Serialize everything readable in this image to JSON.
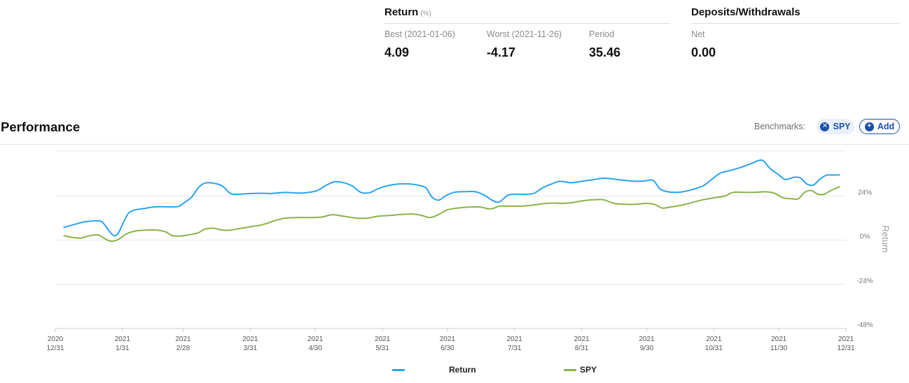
{
  "return_section": {
    "title": "Return",
    "unit": "(%)",
    "stats": [
      {
        "label": "Best (2021-01-06)",
        "value": "4.09"
      },
      {
        "label": "Worst (2021-11-26)",
        "value": "-4.17"
      },
      {
        "label": "Period",
        "value": "35.46"
      }
    ]
  },
  "deposits_section": {
    "title": "Deposits/Withdrawals",
    "stats": [
      {
        "label": "Net",
        "value": "0.00"
      }
    ]
  },
  "performance": {
    "title": "Performance",
    "benchmarks_label": "Benchmarks:",
    "benchmark_chip": "SPY",
    "add_label": "Add"
  },
  "colors": {
    "return_series": "#2aa3ef",
    "spy_series": "#8ab34a",
    "accent": "#1b4fa8"
  },
  "icons": {
    "remove_benchmark": "close-circle-icon",
    "add_benchmark": "plus-circle-icon"
  },
  "chart_data": {
    "type": "line",
    "x_ticks": [
      [
        "2020",
        "12/31"
      ],
      [
        "2021",
        "1/31"
      ],
      [
        "2021",
        "2/28"
      ],
      [
        "2021",
        "3/31"
      ],
      [
        "2021",
        "4/30"
      ],
      [
        "2021",
        "5/31"
      ],
      [
        "2021",
        "6/30"
      ],
      [
        "2021",
        "7/31"
      ],
      [
        "2021",
        "8/31"
      ],
      [
        "2021",
        "9/30"
      ],
      [
        "2021",
        "10/31"
      ],
      [
        "2021",
        "11/30"
      ],
      [
        "2021",
        "12/31"
      ]
    ],
    "x_range": [
      "2020-12-31",
      "2021-12-31"
    ],
    "ylabel": "Return",
    "y_ticks": [
      24,
      0,
      -24,
      -48
    ],
    "y_tick_labels": [
      "24%",
      "0%",
      "-24%",
      "-48%"
    ],
    "ylim": [
      -48,
      48.5
    ],
    "grid": true,
    "legend_position": "bottom",
    "series": [
      {
        "name": "Return",
        "points": [
          [
            "2021-01-04",
            7.0
          ],
          [
            "2021-01-08",
            8.3
          ],
          [
            "2021-01-12",
            9.6
          ],
          [
            "2021-01-16",
            10.3
          ],
          [
            "2021-01-20",
            10.5
          ],
          [
            "2021-01-22",
            9.5
          ],
          [
            "2021-01-25",
            4.8
          ],
          [
            "2021-01-27",
            2.5
          ],
          [
            "2021-01-29",
            3.8
          ],
          [
            "2021-02-01",
            11.0
          ],
          [
            "2021-02-03",
            15.0
          ],
          [
            "2021-02-06",
            16.5
          ],
          [
            "2021-02-10",
            17.2
          ],
          [
            "2021-02-14",
            18.0
          ],
          [
            "2021-02-18",
            18.2
          ],
          [
            "2021-02-22",
            18.1
          ],
          [
            "2021-02-26",
            18.4
          ],
          [
            "2021-03-01",
            20.8
          ],
          [
            "2021-03-04",
            23.5
          ],
          [
            "2021-03-07",
            28.5
          ],
          [
            "2021-03-10",
            31.0
          ],
          [
            "2021-03-14",
            31.0
          ],
          [
            "2021-03-18",
            29.5
          ],
          [
            "2021-03-22",
            25.3
          ],
          [
            "2021-03-26",
            25.0
          ],
          [
            "2021-03-30",
            25.3
          ],
          [
            "2021-04-05",
            25.5
          ],
          [
            "2021-04-10",
            25.4
          ],
          [
            "2021-04-16",
            26.0
          ],
          [
            "2021-04-22",
            25.6
          ],
          [
            "2021-04-27",
            26.0
          ],
          [
            "2021-05-01",
            27.0
          ],
          [
            "2021-05-05",
            29.8
          ],
          [
            "2021-05-09",
            31.8
          ],
          [
            "2021-05-13",
            31.3
          ],
          [
            "2021-05-17",
            29.5
          ],
          [
            "2021-05-21",
            26.0
          ],
          [
            "2021-05-25",
            25.8
          ],
          [
            "2021-05-29",
            28.0
          ],
          [
            "2021-06-02",
            29.5
          ],
          [
            "2021-06-07",
            30.5
          ],
          [
            "2021-06-12",
            30.6
          ],
          [
            "2021-06-16",
            30.0
          ],
          [
            "2021-06-20",
            28.5
          ],
          [
            "2021-06-23",
            23.3
          ],
          [
            "2021-06-26",
            21.8
          ],
          [
            "2021-06-29",
            24.0
          ],
          [
            "2021-07-03",
            26.0
          ],
          [
            "2021-07-08",
            26.4
          ],
          [
            "2021-07-13",
            26.3
          ],
          [
            "2021-07-17",
            24.5
          ],
          [
            "2021-07-21",
            21.5
          ],
          [
            "2021-07-24",
            20.8
          ],
          [
            "2021-07-28",
            24.5
          ],
          [
            "2021-08-01",
            25.0
          ],
          [
            "2021-08-05",
            24.9
          ],
          [
            "2021-08-09",
            25.5
          ],
          [
            "2021-08-13",
            28.5
          ],
          [
            "2021-08-17",
            30.5
          ],
          [
            "2021-08-21",
            32.0
          ],
          [
            "2021-08-26",
            31.2
          ],
          [
            "2021-08-31",
            32.0
          ],
          [
            "2021-09-05",
            32.8
          ],
          [
            "2021-09-10",
            33.7
          ],
          [
            "2021-09-15",
            33.2
          ],
          [
            "2021-09-20",
            32.5
          ],
          [
            "2021-09-25",
            32.0
          ],
          [
            "2021-09-29",
            32.2
          ],
          [
            "2021-10-03",
            32.5
          ],
          [
            "2021-10-06",
            28.0
          ],
          [
            "2021-10-09",
            26.5
          ],
          [
            "2021-10-13",
            26.0
          ],
          [
            "2021-10-17",
            26.4
          ],
          [
            "2021-10-21",
            27.5
          ],
          [
            "2021-10-26",
            29.5
          ],
          [
            "2021-10-30",
            33.0
          ],
          [
            "2021-11-03",
            36.5
          ],
          [
            "2021-11-08",
            38.0
          ],
          [
            "2021-11-13",
            39.8
          ],
          [
            "2021-11-18",
            42.0
          ],
          [
            "2021-11-21",
            43.4
          ],
          [
            "2021-11-23",
            43.0
          ],
          [
            "2021-11-26",
            39.0
          ],
          [
            "2021-11-30",
            35.5
          ],
          [
            "2021-12-03",
            33.0
          ],
          [
            "2021-12-07",
            34.2
          ],
          [
            "2021-12-10",
            33.8
          ],
          [
            "2021-12-13",
            30.5
          ],
          [
            "2021-12-16",
            30.0
          ],
          [
            "2021-12-19",
            33.2
          ],
          [
            "2021-12-22",
            35.3
          ],
          [
            "2021-12-25",
            35.4
          ],
          [
            "2021-12-28",
            35.5
          ]
        ]
      },
      {
        "name": "SPY",
        "points": [
          [
            "2021-01-04",
            2.5
          ],
          [
            "2021-01-08",
            1.5
          ],
          [
            "2021-01-12",
            1.2
          ],
          [
            "2021-01-16",
            2.5
          ],
          [
            "2021-01-20",
            2.8
          ],
          [
            "2021-01-23",
            0.7
          ],
          [
            "2021-01-26",
            -0.6
          ],
          [
            "2021-01-29",
            0.4
          ],
          [
            "2021-02-02",
            3.5
          ],
          [
            "2021-02-06",
            5.0
          ],
          [
            "2021-02-11",
            5.5
          ],
          [
            "2021-02-16",
            5.5
          ],
          [
            "2021-02-20",
            4.5
          ],
          [
            "2021-02-23",
            2.5
          ],
          [
            "2021-02-27",
            2.3
          ],
          [
            "2021-03-03",
            3.0
          ],
          [
            "2021-03-07",
            4.0
          ],
          [
            "2021-03-10",
            6.0
          ],
          [
            "2021-03-14",
            6.5
          ],
          [
            "2021-03-18",
            5.5
          ],
          [
            "2021-03-22",
            5.5
          ],
          [
            "2021-03-27",
            6.5
          ],
          [
            "2021-04-01",
            7.5
          ],
          [
            "2021-04-06",
            8.5
          ],
          [
            "2021-04-11",
            10.5
          ],
          [
            "2021-04-16",
            12.0
          ],
          [
            "2021-04-22",
            12.3
          ],
          [
            "2021-04-28",
            12.3
          ],
          [
            "2021-05-03",
            12.6
          ],
          [
            "2021-05-08",
            13.8
          ],
          [
            "2021-05-13",
            13.0
          ],
          [
            "2021-05-19",
            12.0
          ],
          [
            "2021-05-24",
            12.0
          ],
          [
            "2021-05-29",
            13.0
          ],
          [
            "2021-06-04",
            13.5
          ],
          [
            "2021-06-09",
            14.0
          ],
          [
            "2021-06-14",
            14.2
          ],
          [
            "2021-06-18",
            13.5
          ],
          [
            "2021-06-22",
            12.3
          ],
          [
            "2021-06-26",
            14.0
          ],
          [
            "2021-06-30",
            16.5
          ],
          [
            "2021-07-05",
            17.5
          ],
          [
            "2021-07-10",
            18.0
          ],
          [
            "2021-07-15",
            18.0
          ],
          [
            "2021-07-20",
            17.0
          ],
          [
            "2021-07-24",
            18.5
          ],
          [
            "2021-07-29",
            18.5
          ],
          [
            "2021-08-03",
            18.5
          ],
          [
            "2021-08-08",
            19.0
          ],
          [
            "2021-08-13",
            19.8
          ],
          [
            "2021-08-18",
            20.2
          ],
          [
            "2021-08-22",
            20.0
          ],
          [
            "2021-08-27",
            20.5
          ],
          [
            "2021-09-01",
            21.5
          ],
          [
            "2021-09-06",
            22.0
          ],
          [
            "2021-09-10",
            22.0
          ],
          [
            "2021-09-15",
            20.0
          ],
          [
            "2021-09-20",
            19.5
          ],
          [
            "2021-09-25",
            19.5
          ],
          [
            "2021-09-30",
            20.0
          ],
          [
            "2021-10-04",
            19.3
          ],
          [
            "2021-10-07",
            17.5
          ],
          [
            "2021-10-11",
            18.0
          ],
          [
            "2021-10-16",
            19.0
          ],
          [
            "2021-10-21",
            20.5
          ],
          [
            "2021-10-26",
            22.0
          ],
          [
            "2021-10-31",
            23.0
          ],
          [
            "2021-11-05",
            24.0
          ],
          [
            "2021-11-09",
            26.0
          ],
          [
            "2021-11-14",
            26.0
          ],
          [
            "2021-11-19",
            26.0
          ],
          [
            "2021-11-24",
            26.3
          ],
          [
            "2021-11-28",
            25.5
          ],
          [
            "2021-12-02",
            23.0
          ],
          [
            "2021-12-06",
            22.5
          ],
          [
            "2021-12-09",
            22.5
          ],
          [
            "2021-12-12",
            26.0
          ],
          [
            "2021-12-15",
            27.0
          ],
          [
            "2021-12-18",
            25.0
          ],
          [
            "2021-12-21",
            25.0
          ],
          [
            "2021-12-24",
            27.0
          ],
          [
            "2021-12-28",
            29.0
          ]
        ]
      }
    ]
  }
}
